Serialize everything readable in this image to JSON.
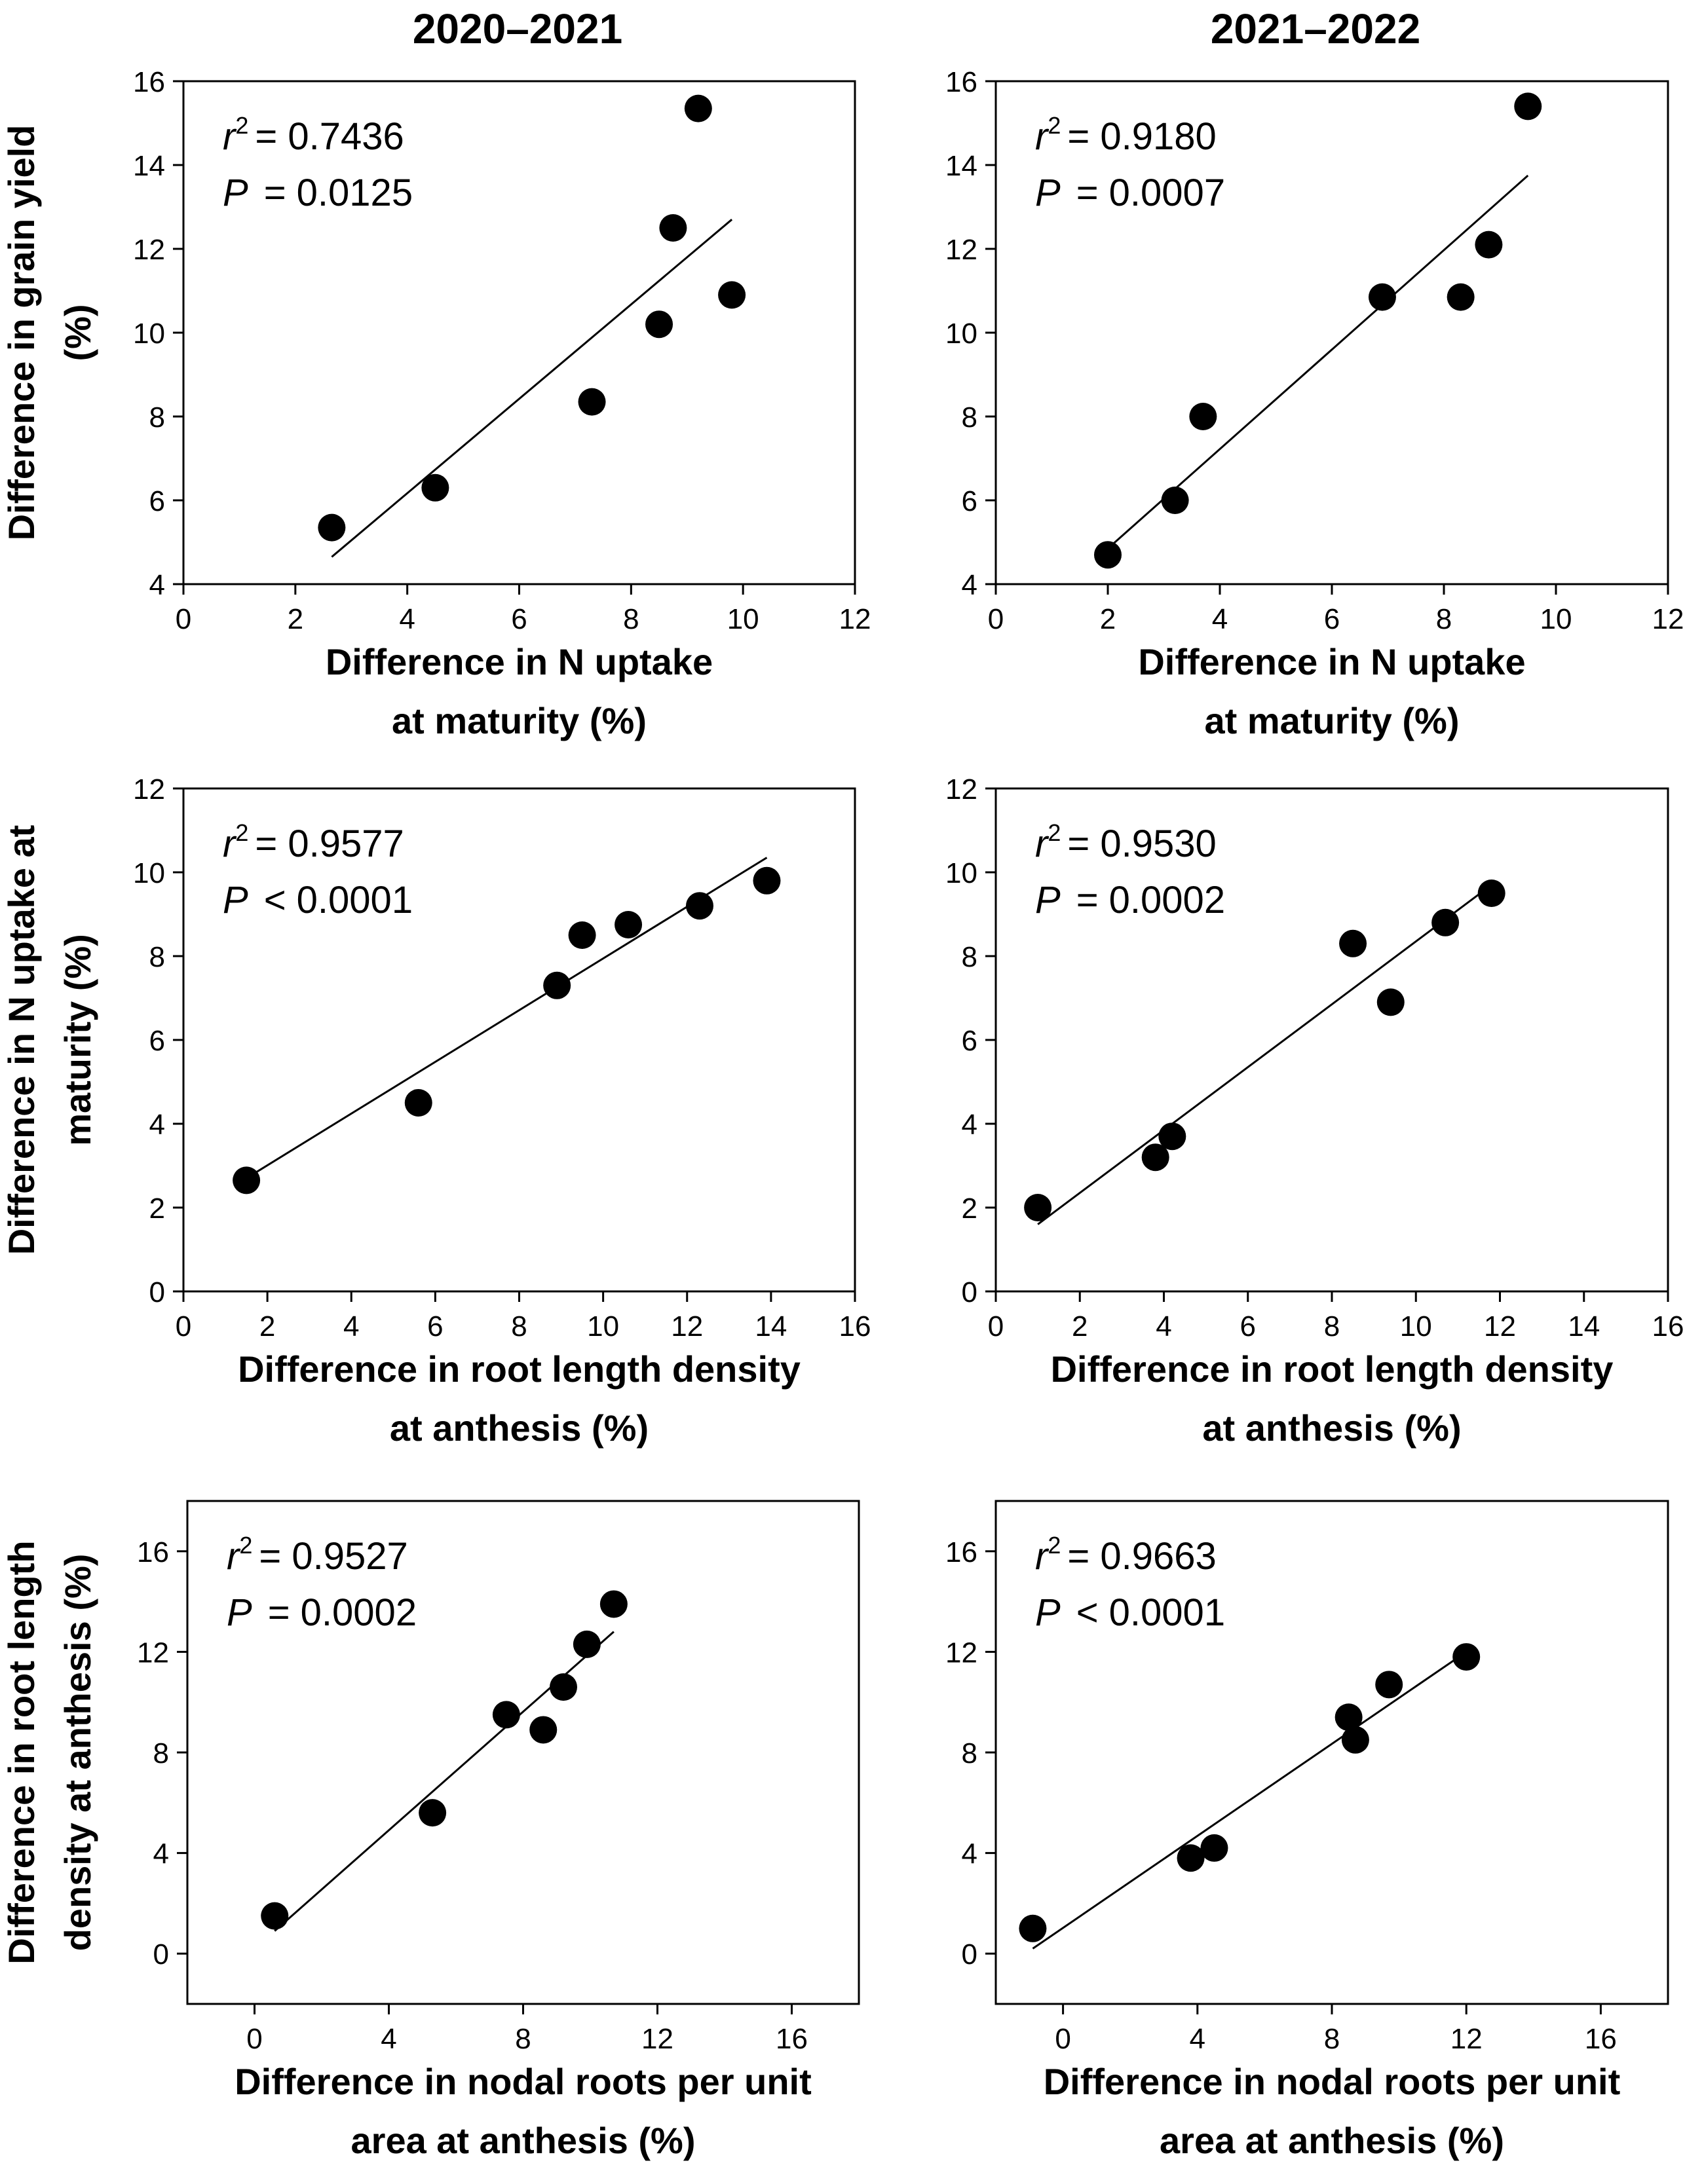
{
  "column_titles": [
    "2020–2021",
    "2021–2022"
  ],
  "chart_data": [
    {
      "type": "scatter",
      "column": 0,
      "row": 0,
      "xlabel": [
        "Difference in N uptake",
        "at maturity (%)"
      ],
      "ylabel": [
        "Difference in grain yield",
        "(%)"
      ],
      "xlim": [
        0,
        12
      ],
      "ylim": [
        4,
        16
      ],
      "xticks": [
        0,
        2,
        4,
        6,
        8,
        10,
        12
      ],
      "yticks": [
        4,
        6,
        8,
        10,
        12,
        14,
        16
      ],
      "points": [
        [
          2.65,
          5.35
        ],
        [
          4.5,
          6.3
        ],
        [
          7.3,
          8.35
        ],
        [
          8.5,
          10.2
        ],
        [
          8.75,
          12.5
        ],
        [
          9.2,
          15.35
        ],
        [
          9.8,
          10.9
        ]
      ],
      "fit_line": [
        [
          2.65,
          4.65
        ],
        [
          9.8,
          12.7
        ]
      ],
      "annotation": {
        "r2_symbol": "r",
        "r2_exp": "2",
        "r2_value": "= 0.7436",
        "p_symbol": "P",
        "p_value": "= 0.0125"
      }
    },
    {
      "type": "scatter",
      "column": 1,
      "row": 0,
      "xlabel": [
        "Difference in N uptake",
        "at maturity (%)"
      ],
      "ylabel": [
        "",
        ""
      ],
      "xlim": [
        0,
        12
      ],
      "ylim": [
        4,
        16
      ],
      "xticks": [
        0,
        2,
        4,
        6,
        8,
        10,
        12
      ],
      "yticks": [
        4,
        6,
        8,
        10,
        12,
        14,
        16
      ],
      "points": [
        [
          2.0,
          4.7
        ],
        [
          3.2,
          6.0
        ],
        [
          3.7,
          8.0
        ],
        [
          6.9,
          10.85
        ],
        [
          8.3,
          10.85
        ],
        [
          8.8,
          12.1
        ],
        [
          9.5,
          15.4
        ]
      ],
      "fit_line": [
        [
          2.0,
          4.85
        ],
        [
          9.5,
          13.75
        ]
      ],
      "annotation": {
        "r2_symbol": "r",
        "r2_exp": "2",
        "r2_value": "= 0.9180",
        "p_symbol": "P",
        "p_value": "= 0.0007"
      }
    },
    {
      "type": "scatter",
      "column": 0,
      "row": 1,
      "xlabel": [
        "Difference in root length density",
        "at anthesis (%)"
      ],
      "ylabel": [
        "Difference in N uptake at",
        "maturity (%)"
      ],
      "xlim": [
        0,
        16
      ],
      "ylim": [
        0,
        12
      ],
      "xticks": [
        0,
        2,
        4,
        6,
        8,
        10,
        12,
        14,
        16
      ],
      "yticks": [
        0,
        2,
        4,
        6,
        8,
        10,
        12
      ],
      "points": [
        [
          1.5,
          2.65
        ],
        [
          5.6,
          4.5
        ],
        [
          8.9,
          7.3
        ],
        [
          9.5,
          8.5
        ],
        [
          10.6,
          8.75
        ],
        [
          12.3,
          9.2
        ],
        [
          13.9,
          9.8
        ]
      ],
      "fit_line": [
        [
          1.5,
          2.7
        ],
        [
          13.9,
          10.35
        ]
      ],
      "annotation": {
        "r2_symbol": "r",
        "r2_exp": "2",
        "r2_value": "= 0.9577",
        "p_symbol": "P",
        "p_value": "< 0.0001"
      }
    },
    {
      "type": "scatter",
      "column": 1,
      "row": 1,
      "xlabel": [
        "Difference in root length density",
        "at anthesis (%)"
      ],
      "ylabel": [
        "",
        ""
      ],
      "xlim": [
        0,
        16
      ],
      "ylim": [
        0,
        12
      ],
      "xticks": [
        0,
        2,
        4,
        6,
        8,
        10,
        12,
        14,
        16
      ],
      "yticks": [
        0,
        2,
        4,
        6,
        8,
        10,
        12
      ],
      "points": [
        [
          1.0,
          2.0
        ],
        [
          3.8,
          3.2
        ],
        [
          4.2,
          3.7
        ],
        [
          8.5,
          8.3
        ],
        [
          9.4,
          6.9
        ],
        [
          10.7,
          8.8
        ],
        [
          11.8,
          9.5
        ]
      ],
      "fit_line": [
        [
          1.0,
          1.6
        ],
        [
          11.8,
          9.7
        ]
      ],
      "annotation": {
        "r2_symbol": "r",
        "r2_exp": "2",
        "r2_value": "= 0.9530",
        "p_symbol": "P",
        "p_value": "= 0.0002"
      }
    },
    {
      "type": "scatter",
      "column": 0,
      "row": 2,
      "xlabel": [
        "Difference in nodal roots per unit",
        "area at anthesis (%)"
      ],
      "ylabel": [
        "Difference in root length",
        "density at anthesis (%)"
      ],
      "xlim": [
        -2,
        18
      ],
      "ylim": [
        -2,
        18
      ],
      "xticks": [
        0,
        4,
        8,
        12,
        16
      ],
      "yticks": [
        0,
        4,
        8,
        12,
        16
      ],
      "points": [
        [
          0.6,
          1.5
        ],
        [
          5.3,
          5.6
        ],
        [
          7.5,
          9.5
        ],
        [
          8.6,
          8.9
        ],
        [
          9.2,
          10.6
        ],
        [
          9.9,
          12.3
        ],
        [
          10.7,
          13.9
        ]
      ],
      "fit_line": [
        [
          0.6,
          0.9
        ],
        [
          10.7,
          12.8
        ]
      ],
      "annotation": {
        "r2_symbol": "r",
        "r2_exp": "2",
        "r2_value": "= 0.9527",
        "p_symbol": "P",
        "p_value": "= 0.0002"
      }
    },
    {
      "type": "scatter",
      "column": 1,
      "row": 2,
      "xlabel": [
        "Difference in nodal roots per unit",
        "area at anthesis (%)"
      ],
      "ylabel": [
        "",
        ""
      ],
      "xlim": [
        -2,
        18
      ],
      "ylim": [
        -2,
        18
      ],
      "xticks": [
        0,
        4,
        8,
        12,
        16
      ],
      "yticks": [
        0,
        4,
        8,
        12,
        16
      ],
      "points": [
        [
          -0.9,
          1.0
        ],
        [
          3.8,
          3.8
        ],
        [
          4.5,
          4.2
        ],
        [
          8.5,
          9.4
        ],
        [
          8.7,
          8.5
        ],
        [
          9.7,
          10.7
        ],
        [
          12.0,
          11.8
        ]
      ],
      "fit_line": [
        [
          -0.9,
          0.2
        ],
        [
          12.0,
          12.0
        ]
      ],
      "annotation": {
        "r2_symbol": "r",
        "r2_exp": "2",
        "r2_value": "= 0.9663",
        "p_symbol": "P",
        "p_value": "< 0.0001"
      }
    }
  ]
}
